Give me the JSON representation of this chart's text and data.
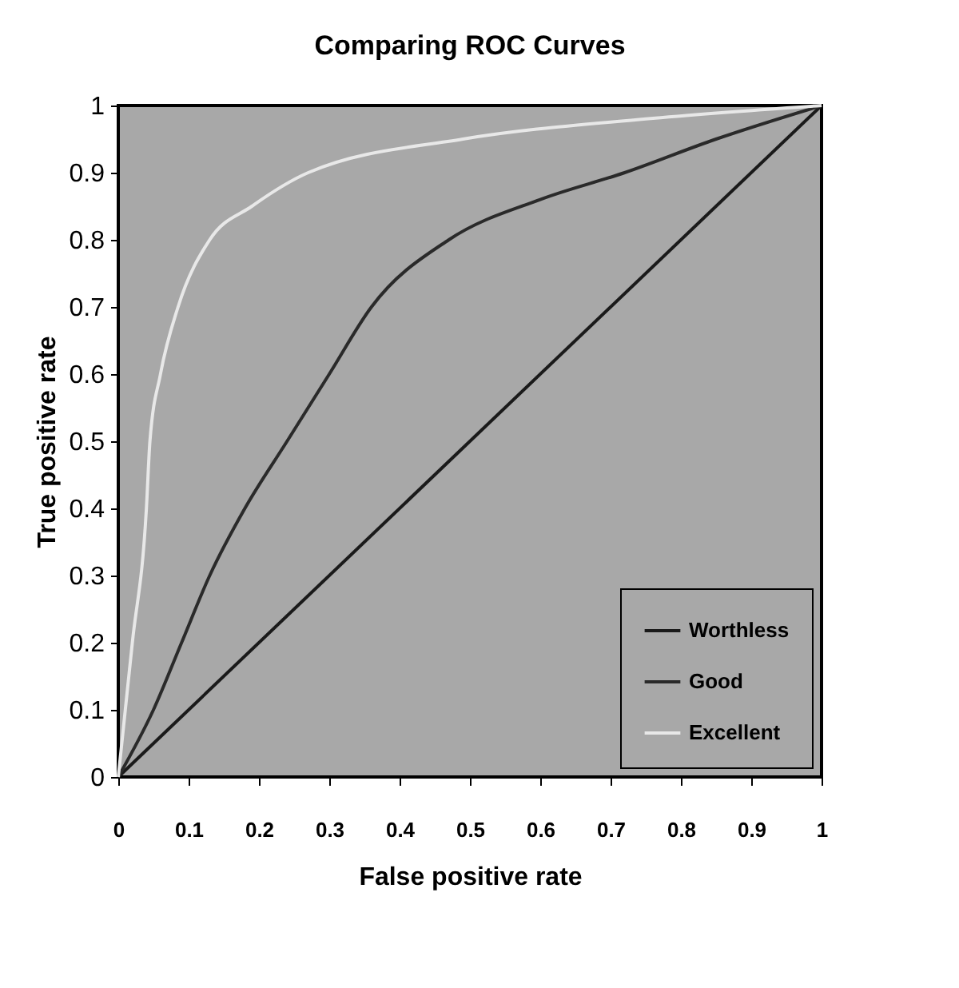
{
  "chart_data": {
    "type": "line",
    "title": "Comparing ROC Curves",
    "xlabel": "False positive rate",
    "ylabel": "True positive rate",
    "xlim": [
      0,
      1
    ],
    "ylim": [
      0,
      1
    ],
    "xticks": [
      0,
      0.1,
      0.2,
      0.3,
      0.4,
      0.5,
      0.6,
      0.7,
      0.8,
      0.9,
      1
    ],
    "yticks": [
      0,
      0.1,
      0.2,
      0.3,
      0.4,
      0.5,
      0.6,
      0.7,
      0.8,
      0.9,
      1
    ],
    "grid": false,
    "legend": "bottom right",
    "marker": "none",
    "line_style": "solid",
    "series": [
      {
        "name": "Worthless",
        "color": "#1a1a1a",
        "x": [
          0,
          1
        ],
        "values": [
          0,
          1
        ]
      },
      {
        "name": "Good",
        "color": "#2a2a2a",
        "x": [
          0,
          0.05,
          0.09,
          0.13,
          0.18,
          0.24,
          0.3,
          0.36,
          0.47,
          0.6,
          0.72,
          0.85,
          1
        ],
        "values": [
          0,
          0.1,
          0.2,
          0.3,
          0.4,
          0.5,
          0.6,
          0.7,
          0.8,
          0.86,
          0.9,
          0.95,
          1
        ]
      },
      {
        "name": "Excellent",
        "color": "#e8e8e8",
        "x": [
          0,
          0.02,
          0.04,
          0.045,
          0.06,
          0.085,
          0.13,
          0.19,
          0.27,
          0.49,
          0.75,
          1
        ],
        "values": [
          0,
          0.2,
          0.4,
          0.5,
          0.6,
          0.7,
          0.8,
          0.85,
          0.9,
          0.95,
          0.98,
          1
        ]
      }
    ]
  }
}
